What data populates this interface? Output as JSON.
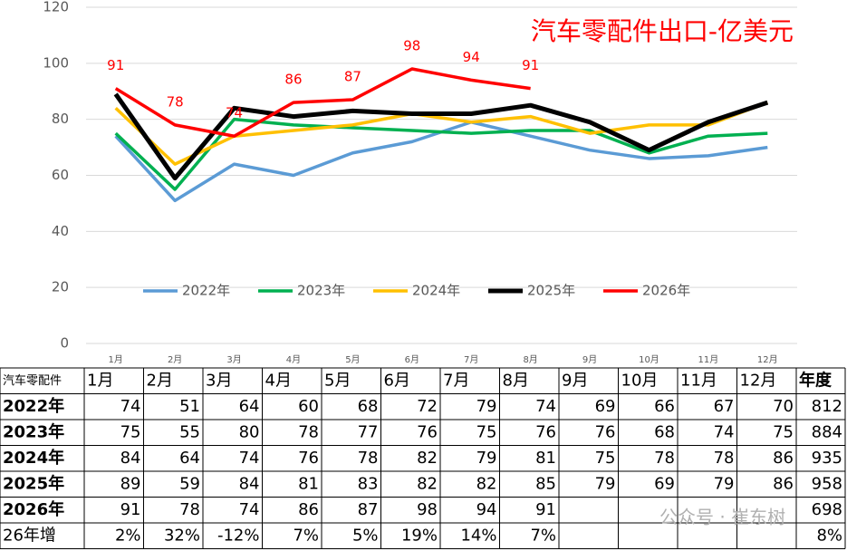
{
  "chart_data": {
    "type": "line",
    "title": "汽车零配件出口-亿美元",
    "categories": [
      "1月",
      "2月",
      "3月",
      "4月",
      "5月",
      "6月",
      "7月",
      "8月",
      "9月",
      "10月",
      "11月",
      "12月"
    ],
    "series": [
      {
        "name": "2022年",
        "color": "#5b9bd5",
        "values": [
          74,
          51,
          64,
          60,
          68,
          72,
          79,
          74,
          69,
          66,
          67,
          70
        ]
      },
      {
        "name": "2023年",
        "color": "#00b050",
        "values": [
          75,
          55,
          80,
          78,
          77,
          76,
          75,
          76,
          76,
          68,
          74,
          75
        ]
      },
      {
        "name": "2024年",
        "color": "#ffc000",
        "values": [
          84,
          64,
          74,
          76,
          78,
          82,
          79,
          81,
          75,
          78,
          78,
          86
        ]
      },
      {
        "name": "2025年",
        "color": "#000000",
        "values": [
          89,
          59,
          84,
          81,
          83,
          82,
          82,
          85,
          79,
          69,
          79,
          86
        ]
      },
      {
        "name": "2026年",
        "color": "#ff0000",
        "values": [
          91,
          78,
          74,
          86,
          87,
          98,
          94,
          91,
          null,
          null,
          null,
          null
        ]
      }
    ],
    "ylim": [
      0,
      120
    ],
    "yticks": [
      0,
      20,
      40,
      60,
      80,
      100,
      120
    ],
    "grid": true,
    "legend": "bottom",
    "table": {
      "corner": "汽车零配件",
      "total_header": "年度",
      "totals": [
        812,
        884,
        935,
        958,
        698
      ],
      "growth_name": "26年增",
      "growth": {
        "values": [
          2,
          32,
          -12,
          7,
          5,
          19,
          14,
          7
        ],
        "value_labels": [
          "2%",
          "32%",
          "-12%",
          "7%",
          "5%",
          "19%",
          "14%",
          "7%"
        ]
      },
      "total_growth": {
        "value": 8,
        "label": "8%"
      }
    },
    "watermark": "公众号 · 崔东树"
  }
}
